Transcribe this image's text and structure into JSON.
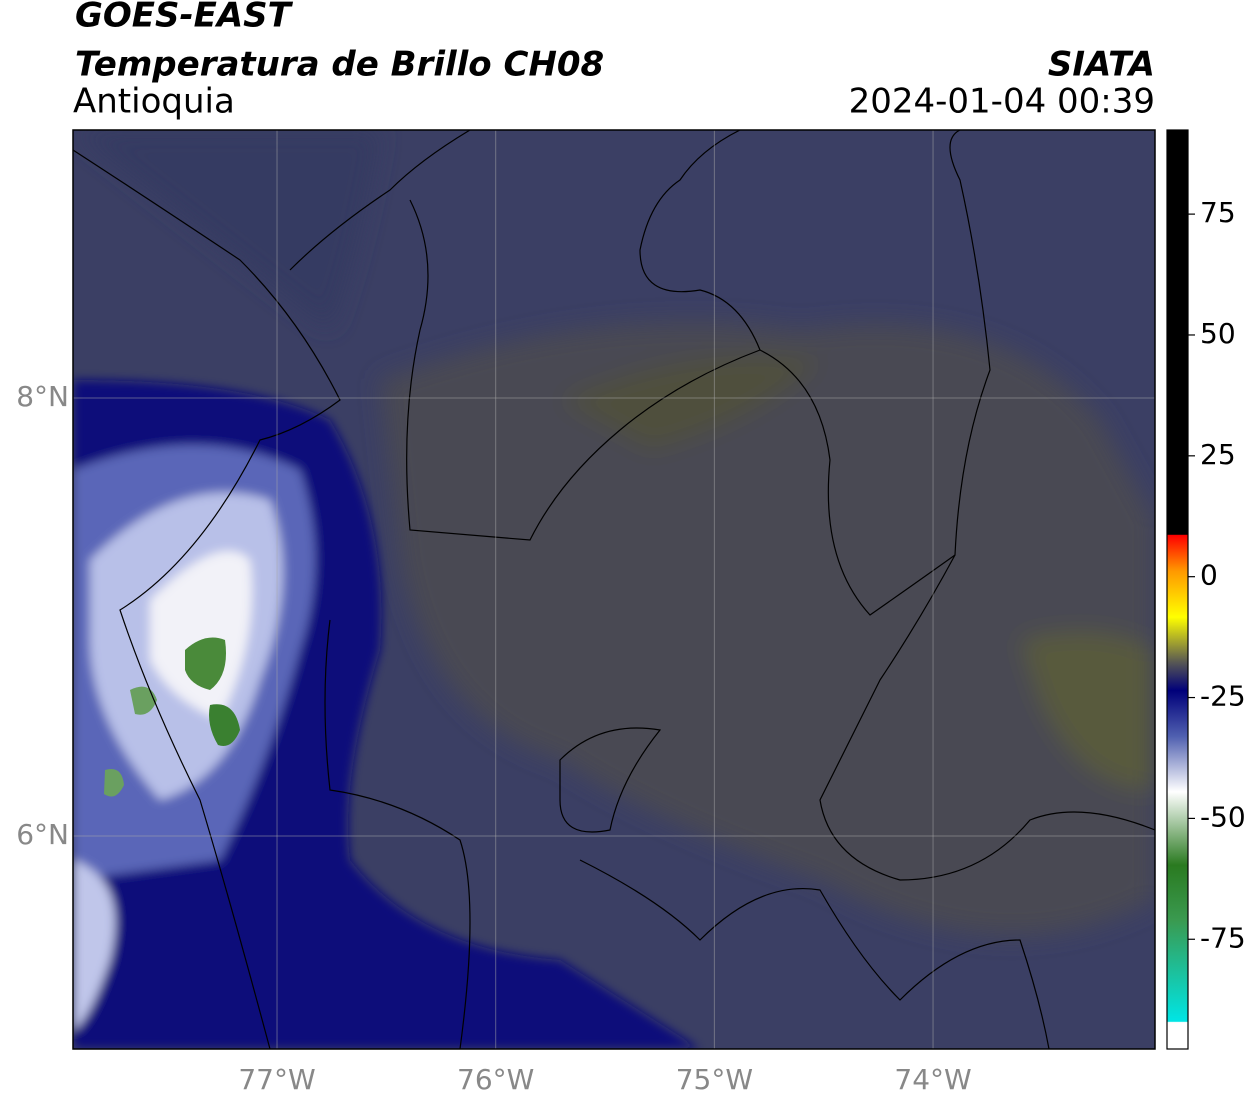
{
  "header": {
    "title": "GOES-EAST",
    "subtitle": "Temperatura de Brillo CH08",
    "region": "Antioquia",
    "source": "SIATA",
    "datetime": "2024-01-04 00:39"
  },
  "map": {
    "xlim": [
      -77.933,
      -72.985
    ],
    "ylim": [
      5.027,
      9.224
    ],
    "xticks": [
      {
        "value": -77,
        "label": "77°W"
      },
      {
        "value": -76,
        "label": "76°W"
      },
      {
        "value": -75,
        "label": "75°W"
      },
      {
        "value": -74,
        "label": "74°W"
      }
    ],
    "yticks": [
      {
        "value": 8,
        "label": "8°N"
      },
      {
        "value": 6,
        "label": "6°N"
      }
    ],
    "grid": true
  },
  "colorbar": {
    "lim": [
      -97.7,
      92.4
    ],
    "ticks": [
      75,
      50,
      25,
      0,
      -25,
      -50,
      -75
    ]
  }
}
